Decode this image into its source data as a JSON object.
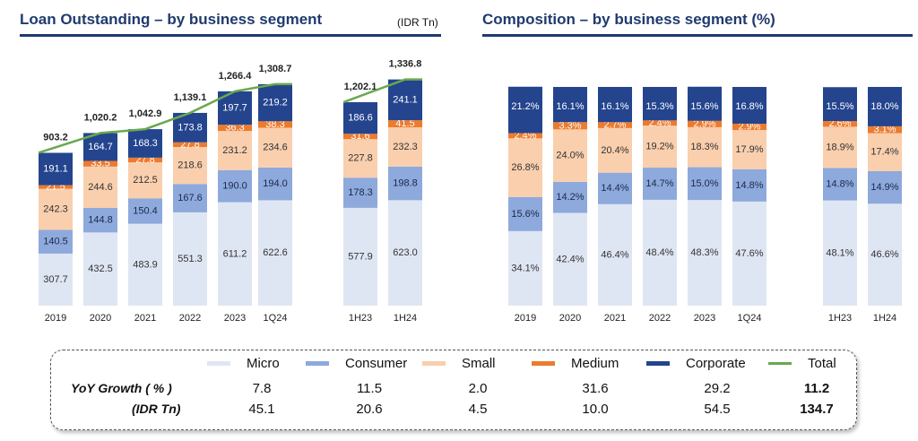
{
  "left_panel": {
    "title": "Loan Outstanding – by business segment",
    "unit": "(IDR Tn)"
  },
  "right_panel": {
    "title": "Composition – by business segment (%)"
  },
  "colors": {
    "Micro": "#dfe6f3",
    "Consumer": "#8ea9dc",
    "Small": "#f9cfae",
    "Medium": "#ec7b2e",
    "Corporate": "#24448e",
    "Total": "#6aa84f",
    "title": "#1f3a6e"
  },
  "chart_data": [
    {
      "type": "bar",
      "stacked": true,
      "title": "Loan Outstanding – by business segment",
      "unit": "IDR Tn",
      "groups": [
        {
          "categories": [
            "2019",
            "2020",
            "2021",
            "2022",
            "2023",
            "1Q24"
          ],
          "series": [
            {
              "name": "Micro",
              "values": [
                307.7,
                432.5,
                483.9,
                551.3,
                611.2,
                622.6
              ]
            },
            {
              "name": "Consumer",
              "values": [
                140.5,
                144.8,
                150.4,
                167.6,
                190.0,
                194.0
              ]
            },
            {
              "name": "Small",
              "values": [
                242.3,
                244.6,
                212.5,
                218.6,
                231.2,
                234.6
              ]
            },
            {
              "name": "Medium",
              "values": [
                21.5,
                33.5,
                27.8,
                27.8,
                36.3,
                38.3
              ]
            },
            {
              "name": "Corporate",
              "values": [
                191.1,
                164.7,
                168.3,
                173.8,
                197.7,
                219.2
              ]
            }
          ],
          "totals": [
            903.2,
            1020.2,
            1042.9,
            1139.1,
            1266.4,
            1308.7
          ],
          "value_labels": [
            [
              "307.7",
              "432.5",
              "483.9",
              "551.3",
              "611.2",
              "622.6"
            ],
            [
              "140.5",
              "144.8",
              "150.4",
              "167.6",
              "190.0",
              "194.0"
            ],
            [
              "242.3",
              "244.6",
              "212.5",
              "218.6",
              "231.2",
              "234.6"
            ],
            [
              "21.5",
              "33.5",
              "27.8",
              "27.8",
              "36.3",
              "38.3"
            ],
            [
              "191.1",
              "164.7",
              "168.3",
              "173.8",
              "197.7",
              "219.2"
            ]
          ],
          "total_labels": [
            "903.2",
            "1,020.2",
            "1,042.9",
            "1,139.1",
            "1,266.4",
            "1,308.7"
          ]
        },
        {
          "categories": [
            "1H23",
            "1H24"
          ],
          "series": [
            {
              "name": "Micro",
              "values": [
                577.9,
                623.0
              ]
            },
            {
              "name": "Consumer",
              "values": [
                178.3,
                198.8
              ]
            },
            {
              "name": "Small",
              "values": [
                227.8,
                232.3
              ]
            },
            {
              "name": "Medium",
              "values": [
                31.6,
                41.5
              ]
            },
            {
              "name": "Corporate",
              "values": [
                186.6,
                241.1
              ]
            }
          ],
          "totals": [
            1202.1,
            1336.8
          ],
          "value_labels": [
            [
              "577.9",
              "623.0"
            ],
            [
              "178.3",
              "198.8"
            ],
            [
              "227.8",
              "232.3"
            ],
            [
              "31.6",
              "41.5"
            ],
            [
              "186.6",
              "241.1"
            ]
          ],
          "total_labels": [
            "1,202.1",
            "1,336.8"
          ]
        }
      ],
      "line": {
        "name": "Total"
      }
    },
    {
      "type": "bar",
      "stacked": true,
      "percent": true,
      "title": "Composition – by business segment (%)",
      "groups": [
        {
          "categories": [
            "2019",
            "2020",
            "2021",
            "2022",
            "2023",
            "1Q24"
          ],
          "series": [
            {
              "name": "Micro",
              "values": [
                34.1,
                42.4,
                46.4,
                48.4,
                48.3,
                47.6
              ]
            },
            {
              "name": "Consumer",
              "values": [
                15.6,
                14.2,
                14.4,
                14.7,
                15.0,
                14.8
              ]
            },
            {
              "name": "Small",
              "values": [
                26.8,
                24.0,
                20.4,
                19.2,
                18.3,
                17.9
              ]
            },
            {
              "name": "Medium",
              "values": [
                2.4,
                3.3,
                2.7,
                2.4,
                2.9,
                2.9
              ]
            },
            {
              "name": "Corporate",
              "values": [
                21.2,
                16.1,
                16.1,
                15.3,
                15.6,
                16.8
              ]
            }
          ],
          "value_labels": [
            [
              "34.1%",
              "42.4%",
              "46.4%",
              "48.4%",
              "48.3%",
              "47.6%"
            ],
            [
              "15.6%",
              "14.2%",
              "14.4%",
              "14.7%",
              "15.0%",
              "14.8%"
            ],
            [
              "26.8%",
              "24.0%",
              "20.4%",
              "19.2%",
              "18.3%",
              "17.9%"
            ],
            [
              "2.4%",
              "3.3%",
              "2.7%",
              "2.4%",
              "2.9%",
              "2.9%"
            ],
            [
              "21.2%",
              "16.1%",
              "16.1%",
              "15.3%",
              "15.6%",
              "16.8%"
            ]
          ]
        },
        {
          "categories": [
            "1H23",
            "1H24"
          ],
          "series": [
            {
              "name": "Micro",
              "values": [
                48.1,
                46.6
              ]
            },
            {
              "name": "Consumer",
              "values": [
                14.8,
                14.9
              ]
            },
            {
              "name": "Small",
              "values": [
                18.9,
                17.4
              ]
            },
            {
              "name": "Medium",
              "values": [
                2.6,
                3.1
              ]
            },
            {
              "name": "Corporate",
              "values": [
                15.5,
                18.0
              ]
            }
          ],
          "value_labels": [
            [
              "48.1%",
              "46.6%"
            ],
            [
              "14.8%",
              "14.9%"
            ],
            [
              "18.9%",
              "17.4%"
            ],
            [
              "2.6%",
              "3.1%"
            ],
            [
              "15.5%",
              "18.0%"
            ]
          ]
        }
      ]
    }
  ],
  "legend": {
    "items": [
      {
        "name": "Micro",
        "label": "Micro"
      },
      {
        "name": "Consumer",
        "label": "Consumer"
      },
      {
        "name": "Small",
        "label": "Small"
      },
      {
        "name": "Medium",
        "label": "Medium"
      },
      {
        "name": "Corporate",
        "label": "Corporate"
      },
      {
        "name": "Total",
        "label": "Total"
      }
    ]
  },
  "yoy": {
    "growth_label": "YoY Growth  ( % )",
    "idr_label": "(IDR Tn)",
    "growth_pct": [
      "7.8",
      "11.5",
      "2.0",
      "31.6",
      "29.2",
      "11.2"
    ],
    "growth_idr": [
      "45.1",
      "20.6",
      "4.5",
      "10.0",
      "54.5",
      "134.7"
    ]
  }
}
